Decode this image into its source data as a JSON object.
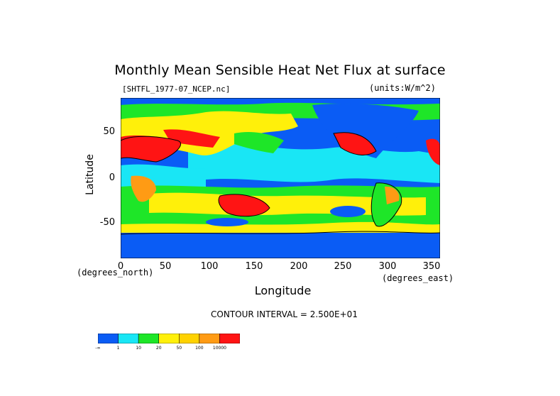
{
  "title": "Monthly Mean Sensible Heat Net Flux at surface",
  "file_label": "[SHTFL_1977-07_NCEP.nc]",
  "units_label": "(units:W/m^2)",
  "y_axis": {
    "label": "Latitude",
    "ticks": [
      "50",
      "0",
      "-50"
    ],
    "note": "(degrees_north)"
  },
  "x_axis": {
    "label": "Longitude",
    "ticks": [
      "0",
      "50",
      "100",
      "150",
      "200",
      "250",
      "300",
      "350"
    ],
    "note": "(degrees_east)"
  },
  "contour_text": "CONTOUR INTERVAL = 2.500E+01",
  "legend": {
    "colors": [
      "#0a5cf5",
      "#19e6f5",
      "#1ee628",
      "#fff00a",
      "#ffd200",
      "#ff9b14",
      "#ff1414"
    ],
    "labels": [
      "-∞",
      "1",
      "10",
      "20",
      "50",
      "100",
      "10000"
    ]
  },
  "map_colors": {
    "ocean_deep": "#0a5cf5",
    "ocean_light": "#19e6f5",
    "green": "#1ee628",
    "yellow": "#fff00a",
    "orange": "#ff9b14",
    "red": "#ff1414"
  }
}
